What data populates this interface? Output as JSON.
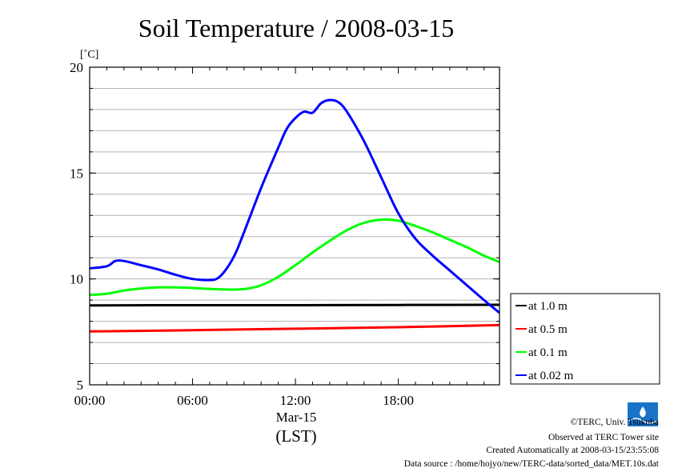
{
  "chart_data": {
    "type": "line",
    "title": "Soil Temperature / 2008-03-15",
    "ylabel": "[˚C]",
    "xlabel": "(LST)",
    "date_label": "Mar-15",
    "ylim": [
      5,
      20
    ],
    "yticks": [
      "5",
      "10",
      "15",
      "20"
    ],
    "xlim_hours": [
      0,
      23.9
    ],
    "xticks": [
      {
        "hour": 0,
        "label": "00:00"
      },
      {
        "hour": 6,
        "label": "06:00"
      },
      {
        "hour": 12,
        "label": "12:00"
      },
      {
        "hour": 18,
        "label": "18:00"
      }
    ],
    "grid": true,
    "legend_position": "right",
    "series": [
      {
        "name": "at 1.0 m",
        "color": "#000000",
        "x": [
          0,
          6,
          12,
          18,
          23.9
        ],
        "y": [
          8.75,
          8.76,
          8.76,
          8.77,
          8.78
        ]
      },
      {
        "name": "at 0.5 m",
        "color": "#ff0000",
        "x": [
          0,
          6,
          12,
          18,
          23.9
        ],
        "y": [
          7.52,
          7.58,
          7.65,
          7.72,
          7.82
        ]
      },
      {
        "name": "at 0.1 m",
        "color": "#00ff00",
        "x": [
          0,
          1,
          2,
          3,
          4,
          5,
          6,
          7,
          8,
          9,
          10,
          11,
          12,
          13,
          14,
          15,
          16,
          17,
          18,
          19,
          20,
          21,
          22,
          23,
          23.9
        ],
        "y": [
          9.25,
          9.3,
          9.45,
          9.55,
          9.6,
          9.6,
          9.57,
          9.53,
          9.5,
          9.52,
          9.7,
          10.1,
          10.65,
          11.25,
          11.8,
          12.3,
          12.65,
          12.8,
          12.75,
          12.5,
          12.2,
          11.85,
          11.5,
          11.1,
          10.8
        ]
      },
      {
        "name": "at 0.02 m",
        "color": "#0000ff",
        "x": [
          0,
          1,
          1.5,
          2,
          3,
          4,
          5,
          6,
          7,
          7.5,
          8,
          8.5,
          9,
          10,
          11,
          11.5,
          12,
          12.5,
          13,
          13.5,
          14,
          14.5,
          15,
          16,
          17,
          18,
          19,
          20,
          21,
          22,
          23,
          23.9
        ],
        "y": [
          10.5,
          10.6,
          10.85,
          10.85,
          10.65,
          10.45,
          10.2,
          10.0,
          9.95,
          10.05,
          10.5,
          11.2,
          12.2,
          14.3,
          16.2,
          17.1,
          17.6,
          17.9,
          17.85,
          18.3,
          18.45,
          18.35,
          17.9,
          16.5,
          14.8,
          13.1,
          11.9,
          11.1,
          10.4,
          9.7,
          9.0,
          8.4
        ]
      }
    ]
  },
  "credits": {
    "copyright": "©TERC, Univ. Tsukuba",
    "observed": "Observed at TERC Tower site",
    "created": "Created Automatically at 2008-03-15/23:55:08",
    "source": "Data source : /home/hojyo/new/TERC-data/sorted_data/MET.10s.dat",
    "logo_text": "TERC"
  }
}
